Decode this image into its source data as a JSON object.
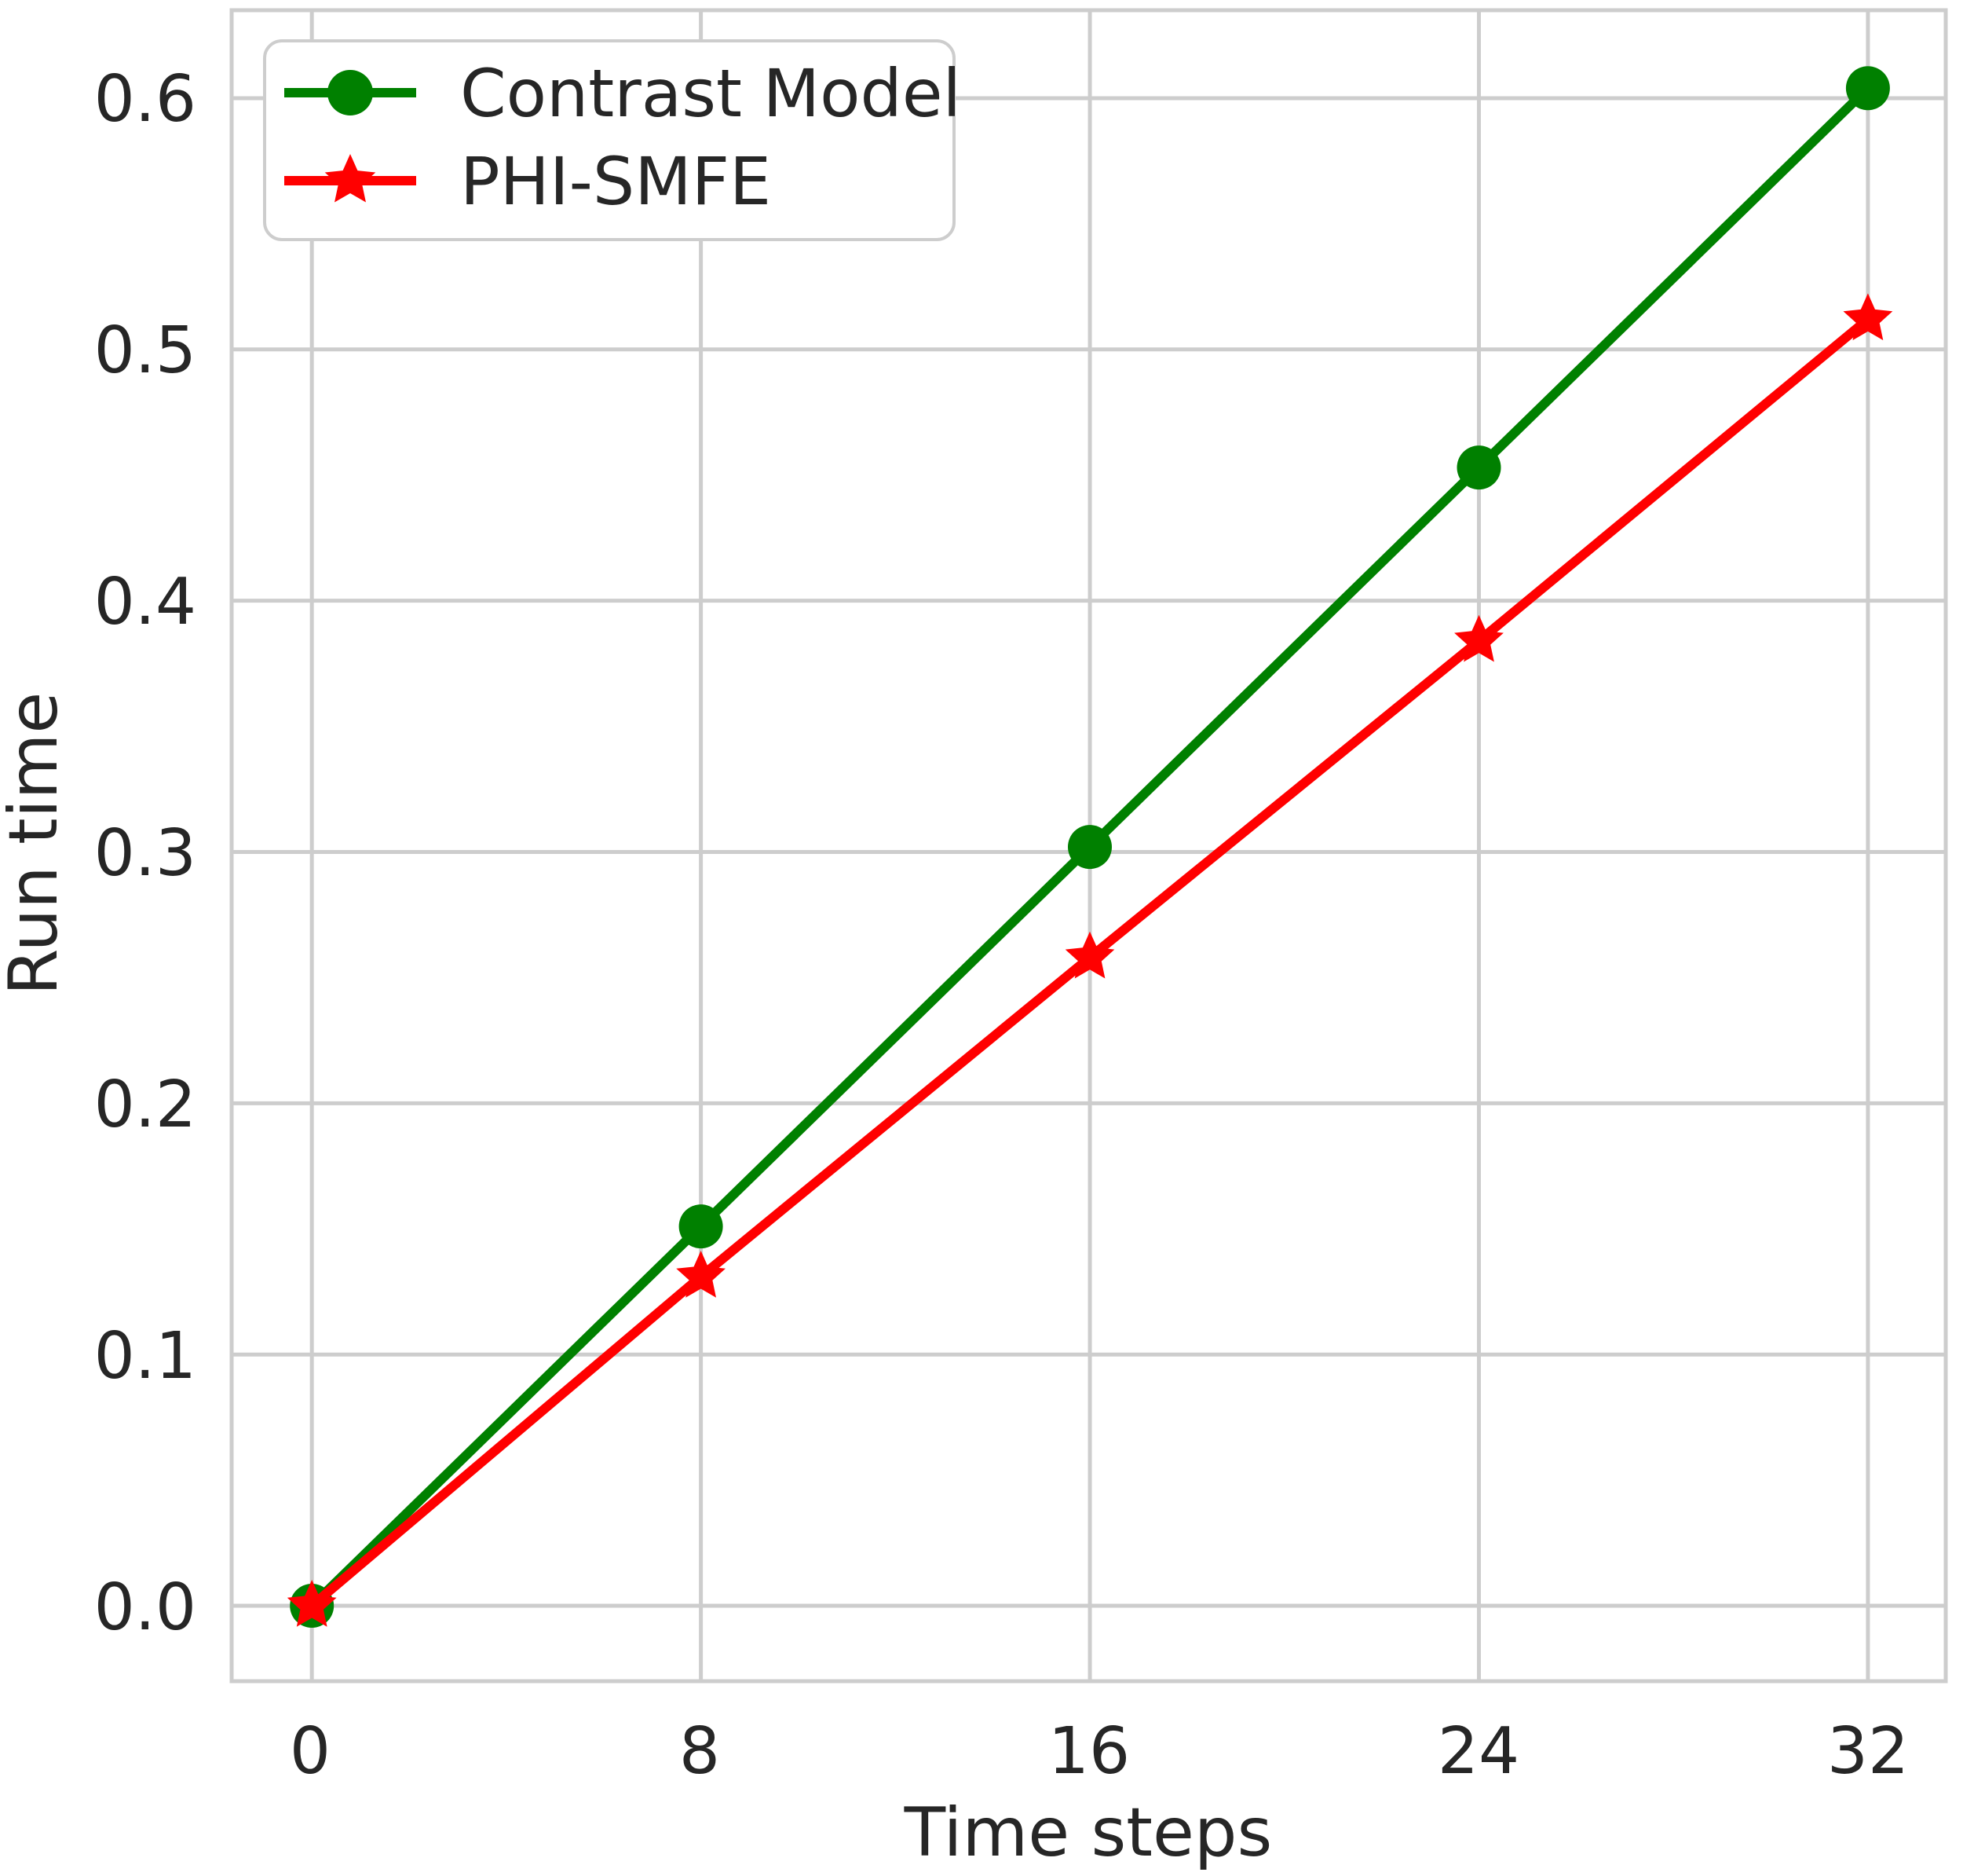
{
  "chart_data": {
    "type": "line",
    "title": "",
    "xlabel": "Time steps",
    "ylabel": "Run time",
    "x": [
      0,
      8,
      16,
      24,
      32
    ],
    "series": [
      {
        "name": "Contrast Model",
        "color": "#008000",
        "marker": "circle",
        "values": [
          0.0,
          0.151,
          0.302,
          0.453,
          0.604
        ]
      },
      {
        "name": "PHI-SMFE",
        "color": "#ff0000",
        "marker": "star",
        "values": [
          0.0,
          0.131,
          0.258,
          0.384,
          0.512
        ]
      }
    ],
    "xtick_labels": [
      "0",
      "8",
      "16",
      "24",
      "32"
    ],
    "xtick_values": [
      0,
      8,
      16,
      24,
      32
    ],
    "ytick_labels": [
      "0.0",
      "0.1",
      "0.2",
      "0.3",
      "0.4",
      "0.5",
      "0.6"
    ],
    "ytick_values": [
      0,
      0.1,
      0.2,
      0.3,
      0.4,
      0.5,
      0.6
    ],
    "xlim": [
      -1.65,
      33.6
    ],
    "ylim": [
      -0.03,
      0.635
    ],
    "grid": true,
    "legend_position": "upper left"
  },
  "colors": {
    "grid": "#cdcdcd",
    "spine": "#cdcdcd",
    "text": "#262626",
    "background": "#ffffff"
  }
}
